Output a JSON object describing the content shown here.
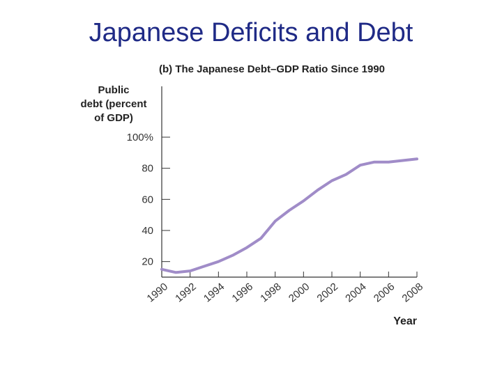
{
  "slide": {
    "title": "Japanese Deficits and Debt"
  },
  "chart_data": {
    "type": "line",
    "title": "(b) The Japanese Debt–GDP Ratio Since 1990",
    "ylabel_lines": [
      "Public",
      "debt (percent",
      "of GDP)"
    ],
    "xlabel": "Year",
    "ylim": [
      10,
      100
    ],
    "xlim": [
      1990,
      2008
    ],
    "yticks": [
      20,
      40,
      60,
      80,
      100
    ],
    "ytick_labels": [
      "20",
      "40",
      "60",
      "80",
      "100%"
    ],
    "xticks": [
      "1990",
      "1992",
      "1994",
      "1996",
      "1998",
      "2000",
      "2002",
      "2004",
      "2006",
      "2008"
    ],
    "line_color": "#a08cc8",
    "series": [
      {
        "x": [
          1990,
          1991,
          1992,
          1993,
          1994,
          1995,
          1996,
          1997,
          1998,
          1999,
          2000,
          2001,
          2002,
          2003,
          2004,
          2005,
          2006,
          2007,
          2008
        ],
        "values": [
          15,
          13,
          14,
          17,
          20,
          24,
          29,
          35,
          46,
          53,
          59,
          66,
          72,
          76,
          82,
          84,
          84,
          85,
          86
        ]
      }
    ]
  }
}
